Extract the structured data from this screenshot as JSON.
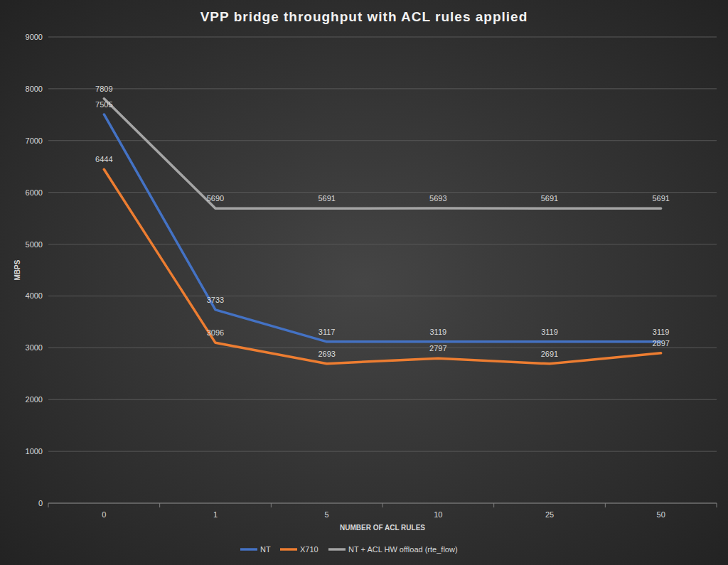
{
  "chart_data": {
    "type": "line",
    "title": "VPP bridge throughput with ACL rules applied",
    "x_label": "NUMBER OF ACL RULES",
    "y_label": "MBPS",
    "categories": [
      "0",
      "1",
      "5",
      "10",
      "25",
      "50"
    ],
    "series": [
      {
        "name": "NT",
        "color": "#4472c4",
        "values": [
          7505,
          3733,
          3117,
          3119,
          3119,
          3119
        ]
      },
      {
        "name": "X710",
        "color": "#ed7d31",
        "values": [
          6444,
          3096,
          2693,
          2797,
          2691,
          2897
        ]
      },
      {
        "name": "NT + ACL HW offload (rte_flow)",
        "color": "#a5a5a5",
        "values": [
          7809,
          5690,
          5691,
          5693,
          5691,
          5691
        ]
      }
    ],
    "ylim": [
      0,
      9000
    ],
    "yticks": [
      0,
      1000,
      2000,
      3000,
      4000,
      5000,
      6000,
      7000,
      8000,
      9000
    ],
    "grid": true,
    "data_labels": true,
    "legend": "bottom"
  }
}
